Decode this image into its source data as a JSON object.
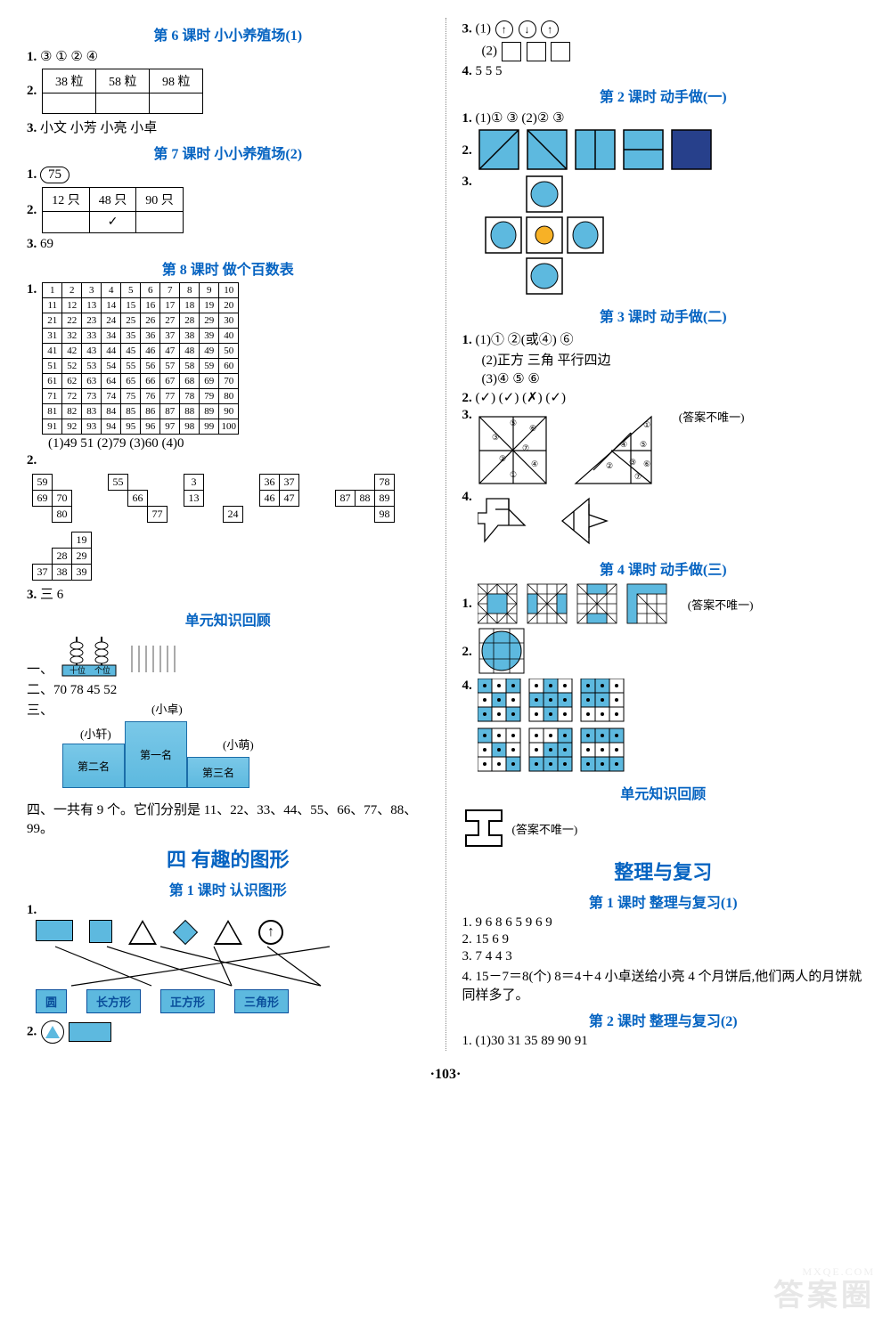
{
  "colors": {
    "accent": "#0563c1",
    "fill": "#5db9df",
    "border": "#000000",
    "bg": "#ffffff"
  },
  "left": {
    "s6": {
      "title": "第 6 课时  小小养殖场(1)",
      "q1_label": "1.",
      "q1_vals": "③  ①  ②  ④",
      "q2_label": "2.",
      "q2_cells": [
        "38 粒",
        "58 粒",
        "98 粒"
      ],
      "q3_label": "3.",
      "q3_text": "小文  小芳  小亮  小卓"
    },
    "s7": {
      "title": "第 7 课时  小小养殖场(2)",
      "q1_label": "1.",
      "q1_circ": "75",
      "q2_label": "2.",
      "tbl_row1": [
        "12 只",
        "48 只",
        "90 只"
      ],
      "tbl_row2": [
        "",
        "✓",
        ""
      ],
      "q3_label": "3.",
      "q3_text": "69"
    },
    "s8": {
      "title": "第 8 课时  做个百数表",
      "q1_label": "1.",
      "grid_rows": [
        [
          "1",
          "2",
          "3",
          "4",
          "5",
          "6",
          "7",
          "8",
          "9",
          "10"
        ],
        [
          "11",
          "12",
          "13",
          "14",
          "15",
          "16",
          "17",
          "18",
          "19",
          "20"
        ],
        [
          "21",
          "22",
          "23",
          "24",
          "25",
          "26",
          "27",
          "28",
          "29",
          "30"
        ],
        [
          "31",
          "32",
          "33",
          "34",
          "35",
          "36",
          "37",
          "38",
          "39",
          "40"
        ],
        [
          "41",
          "42",
          "43",
          "44",
          "45",
          "46",
          "47",
          "48",
          "49",
          "50"
        ],
        [
          "51",
          "52",
          "53",
          "54",
          "55",
          "56",
          "57",
          "58",
          "59",
          "60"
        ],
        [
          "61",
          "62",
          "63",
          "64",
          "65",
          "66",
          "67",
          "68",
          "69",
          "70"
        ],
        [
          "71",
          "72",
          "73",
          "74",
          "75",
          "76",
          "77",
          "78",
          "79",
          "80"
        ],
        [
          "81",
          "82",
          "83",
          "84",
          "85",
          "86",
          "87",
          "88",
          "89",
          "90"
        ],
        [
          "91",
          "92",
          "93",
          "94",
          "95",
          "96",
          "97",
          "98",
          "99",
          "100"
        ]
      ],
      "q1_ans": "(1)49  51  (2)79  (3)60  (4)0",
      "q2_label": "2.",
      "boxes": [
        [
          [
            "59",
            "",
            ""
          ],
          [
            "69",
            "70",
            ""
          ],
          [
            "",
            "80",
            ""
          ]
        ],
        [
          [
            "55",
            "",
            ""
          ],
          [
            "",
            "66",
            ""
          ],
          [
            "",
            "",
            "77"
          ]
        ],
        [
          [
            "3",
            "",
            ""
          ],
          [
            "13",
            "",
            ""
          ],
          [
            "",
            "",
            "24"
          ]
        ],
        [
          [
            "36",
            "37",
            ""
          ],
          [
            "46",
            "47",
            ""
          ]
        ],
        [
          [
            "",
            "",
            "78",
            ""
          ],
          [
            "87",
            "88",
            "89",
            ""
          ],
          [
            "",
            "",
            "98",
            ""
          ]
        ],
        [
          [
            "",
            "",
            "19"
          ],
          [
            "",
            "28",
            "29"
          ],
          [
            "37",
            "38",
            "39"
          ]
        ]
      ],
      "q3_label": "3.",
      "q3_text": "三  6"
    },
    "review": {
      "title": "单元知识回顾",
      "r1_label": "一、",
      "r1_label_a": "十位",
      "r1_label_b": "个位",
      "r2_label": "二、",
      "r2_text": "70  78  45  52",
      "r3_label": "三、",
      "podium_top": "(小卓)",
      "podium_left": "(小轩)",
      "podium_right": "(小萌)",
      "p1": "第一名",
      "p2": "第二名",
      "p3": "第三名",
      "r4_label": "四、",
      "r4_text": "一共有 9 个。它们分别是 11、22、33、44、55、66、77、88、99。"
    },
    "unit4": {
      "title": "四  有趣的图形",
      "s1_title": "第 1 课时  认识图形",
      "q1_label": "1.",
      "shape_names": [
        "圆",
        "长方形",
        "正方形",
        "三角形"
      ],
      "q2_label": "2."
    }
  },
  "right": {
    "q3_label": "3.",
    "q3_1": "(1)",
    "q3_2": "(2)",
    "q4_label": "4.",
    "q4_text": "5  5  5",
    "s2": {
      "title": "第 2 课时  动手做(一)",
      "q1_label": "1.",
      "q1_text": "(1)①  ③  (2)②  ③",
      "q2_label": "2.",
      "q3_label": "3."
    },
    "s3": {
      "title": "第 3 课时  动手做(二)",
      "q1_label": "1.",
      "q1_l1": "(1)①  ②(或④)  ⑥",
      "q1_l2": "(2)正方  三角  平行四边",
      "q1_l3": "(3)④  ⑤  ⑥",
      "q2_label": "2.",
      "q2_text": "(✓)  (✓)  (✗)  (✓)",
      "q3_label": "3.",
      "q3_note": "(答案不唯一)",
      "q4_label": "4."
    },
    "s4": {
      "title": "第 4 课时  动手做(三)",
      "q1_label": "1.",
      "q1_note": "(答案不唯一)",
      "q2_label": "2.",
      "q4_label": "4."
    },
    "review2": {
      "title": "单元知识回顾",
      "note": "(答案不唯一)"
    },
    "rev": {
      "title": "整理与复习",
      "s1_title": "第 1 课时  整理与复习(1)",
      "l1": "1. 9  6  8  6  5  9  6  9",
      "l2": "2. 15  6  9",
      "l3": "3. 7  4  4  3",
      "l4": "4. 15－7＝8(个)  8＝4＋4  小卓送给小亮 4 个月饼后,他们两人的月饼就同样多了。",
      "s2_title": "第 2 课时  整理与复习(2)",
      "l5": "1. (1)30  31  35  89  90  91"
    }
  },
  "page_num": "·103·",
  "wm1": "答案圈",
  "wm2": "MXQE.COM"
}
